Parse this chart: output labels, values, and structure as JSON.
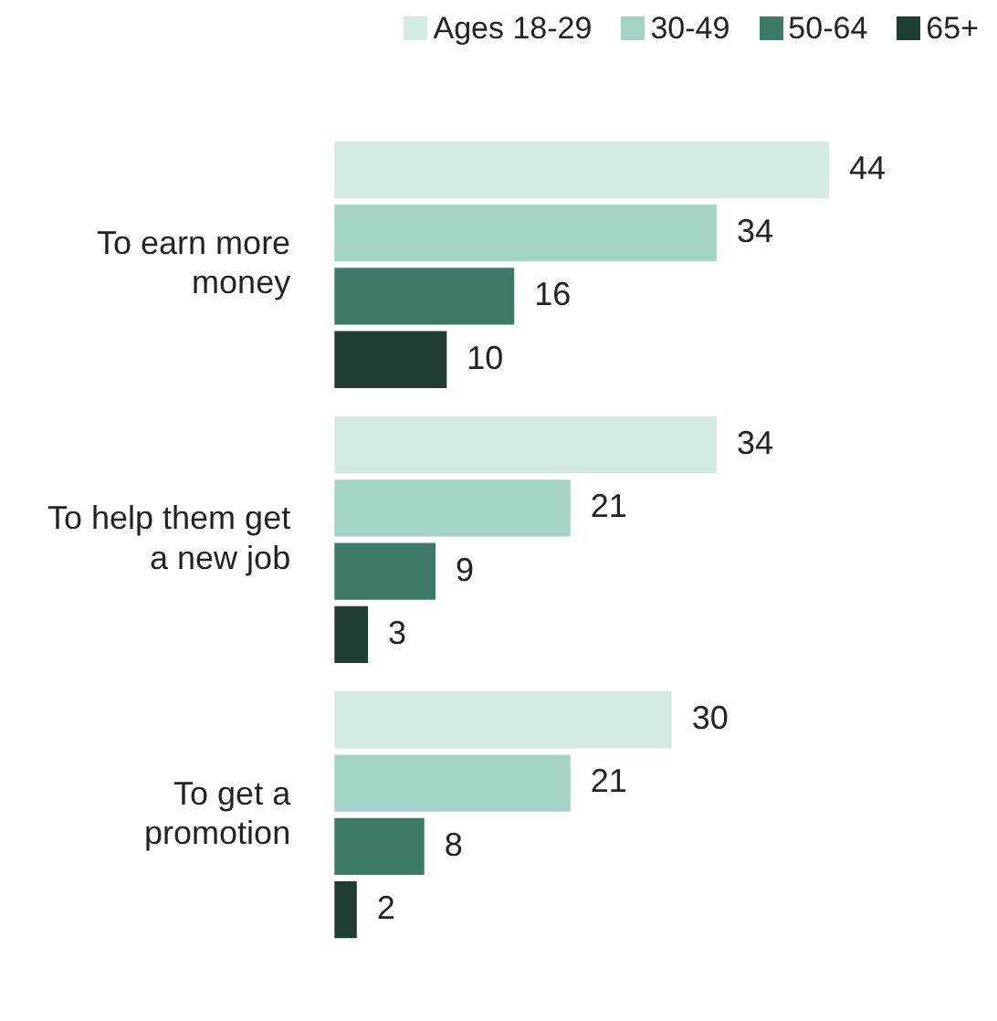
{
  "chart_data": {
    "type": "bar",
    "orientation": "horizontal",
    "categories": [
      "To earn more money",
      "To help them get a new job",
      "To get a promotion"
    ],
    "series": [
      {
        "name": "Ages 18-29",
        "color": "#d3e9e4",
        "values": [
          44,
          34,
          30
        ]
      },
      {
        "name": "30-49",
        "color": "#a3d3c7",
        "values": [
          34,
          21,
          21
        ]
      },
      {
        "name": "50-64",
        "color": "#3e7a69",
        "values": [
          16,
          9,
          8
        ]
      },
      {
        "name": "65+",
        "color": "#1f3d34",
        "values": [
          10,
          3,
          2
        ]
      }
    ],
    "data_labels": true,
    "legend": "top",
    "tick_labels": "y"
  }
}
